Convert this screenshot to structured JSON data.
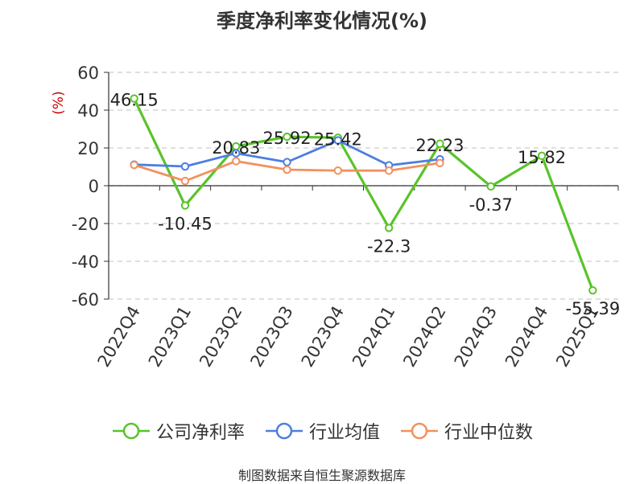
{
  "title": "季度净利率变化情况(%)",
  "source": "制图数据来自恒生聚源数据库",
  "chart_data": {
    "type": "line",
    "title": "季度净利率变化情况(%)",
    "ylabel": "(%)",
    "ylim": [
      -60,
      60
    ],
    "yticks": [
      60,
      40,
      20,
      0,
      -20,
      -40,
      -60
    ],
    "ytick_labels": [
      "60",
      "40",
      "20",
      "0",
      "-20",
      "-40",
      "-60"
    ],
    "grid": true,
    "legend_position": "bottom",
    "categories": [
      "2022Q4",
      "2023Q1",
      "2023Q2",
      "2023Q3",
      "2023Q4",
      "2024Q1",
      "2024Q2",
      "2024Q3",
      "2024Q4",
      "2025Q1"
    ],
    "series": [
      {
        "name": "公司净利率",
        "color": "#5ac32a",
        "values": [
          46.15,
          -10.45,
          20.83,
          25.92,
          25.42,
          -22.3,
          22.23,
          -0.37,
          15.82,
          -55.39
        ],
        "labels": [
          "46.15",
          "-10.45",
          "20.83",
          "25.92",
          "25.42",
          "-22.3",
          "22.23",
          "-0.37",
          "15.82",
          "-55.39"
        ]
      },
      {
        "name": "行业均值",
        "color": "#4c7fe0",
        "values": [
          11.2,
          10.2,
          17.2,
          12.5,
          24.0,
          10.8,
          14.0,
          null,
          null,
          null
        ]
      },
      {
        "name": "行业中位数",
        "color": "#f3905d",
        "values": [
          11.0,
          2.5,
          13.0,
          8.5,
          8.0,
          8.0,
          12.0,
          null,
          null,
          null
        ]
      }
    ]
  }
}
